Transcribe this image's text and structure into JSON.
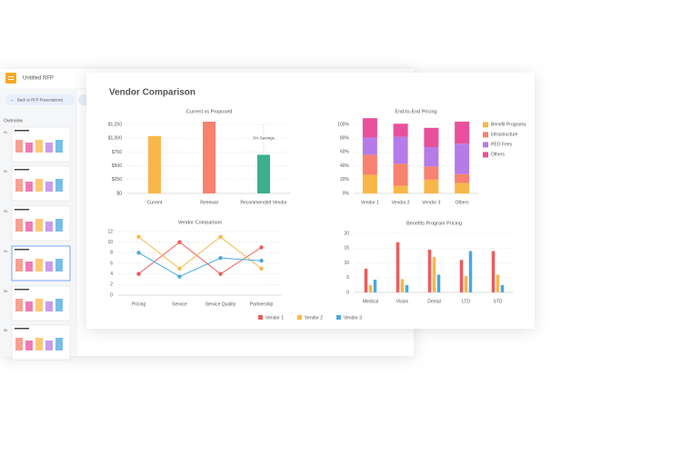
{
  "app": {
    "title": "Untitled RFP",
    "back_button": "Back to RFP Presentations",
    "sidebar_heading": "Overview",
    "slide_numbers": [
      "01",
      "02",
      "03",
      "04",
      "05",
      "06"
    ]
  },
  "slide_title": "Vendor Comparison",
  "chart_data": [
    {
      "type": "bar",
      "title": "Current vs Proposed",
      "categories": [
        "Current",
        "Renewal",
        "Recommended Vendor"
      ],
      "values": [
        1040,
        1300,
        700
      ],
      "colors": [
        "#f9b74a",
        "#f7826f",
        "#3bb08f"
      ],
      "ylim": [
        0,
        1300
      ],
      "yticks": [
        {
          "value": 0,
          "label": "$0"
        },
        {
          "value": 250,
          "label": "$250"
        },
        {
          "value": 500,
          "label": "$500"
        },
        {
          "value": 750,
          "label": "$750"
        },
        {
          "value": 1000,
          "label": "$1,000"
        },
        {
          "value": 1250,
          "label": "$1,250"
        }
      ],
      "grid": true,
      "annotation": "3% Savings"
    },
    {
      "type": "stacked_bar",
      "title": "End-to-End Pricing",
      "categories": [
        "Vendor 1",
        "Vendor 2",
        "Vendor 3",
        "Others"
      ],
      "series": [
        {
          "name": "Benefit Programs",
          "color": "#f9b74a",
          "values": [
            27,
            11,
            20,
            15
          ]
        },
        {
          "name": "Infrastructure",
          "color": "#f7826f",
          "values": [
            29,
            32,
            19,
            13
          ]
        },
        {
          "name": "PEO Fees",
          "color": "#b57be8",
          "values": [
            25,
            39,
            28,
            44
          ]
        },
        {
          "name": "Others",
          "color": "#e8509b",
          "values": [
            28,
            19,
            28,
            32
          ]
        }
      ],
      "ylim": [
        0,
        110
      ],
      "yticks": [
        {
          "value": 0,
          "label": "0%"
        },
        {
          "value": 20,
          "label": "20%"
        },
        {
          "value": 40,
          "label": "40%"
        },
        {
          "value": 60,
          "label": "60%"
        },
        {
          "value": 80,
          "label": "80%"
        },
        {
          "value": 100,
          "label": "100%"
        }
      ],
      "grid": true,
      "legend": "right"
    },
    {
      "type": "line",
      "title": "Vendor Comparison",
      "categories": [
        "Pricing",
        "Service",
        "Service Quality",
        "Partnership"
      ],
      "series": [
        {
          "name": "Vendor 1",
          "color": "#f05a5a",
          "values": [
            4,
            10,
            4,
            9
          ]
        },
        {
          "name": "Vendor 2",
          "color": "#f9b74a",
          "values": [
            11,
            5,
            11,
            5
          ]
        },
        {
          "name": "Vendor 3",
          "color": "#4aa8e0",
          "values": [
            8,
            3.5,
            7,
            6.5
          ]
        }
      ],
      "ylim": [
        0,
        12
      ],
      "yticks": [
        0,
        2,
        4,
        6,
        8,
        10,
        12
      ],
      "grid": true,
      "legend": "bottom"
    },
    {
      "type": "grouped_bar",
      "title": "Benefits Program Pricing",
      "categories": [
        "Medical",
        "Vision",
        "Dental",
        "LTD",
        "STD"
      ],
      "series": [
        {
          "color": "#f05a5a",
          "values": [
            8,
            17,
            14.5,
            11,
            14
          ]
        },
        {
          "color": "#f9b74a",
          "values": [
            2.5,
            4.5,
            12,
            5.5,
            6
          ]
        },
        {
          "color": "#4aa8e0",
          "values": [
            4.3,
            2.5,
            6,
            14,
            2.5
          ]
        }
      ],
      "ylim": [
        0,
        20
      ],
      "yticks": [
        0,
        5,
        10,
        15,
        20
      ],
      "grid": true
    }
  ]
}
